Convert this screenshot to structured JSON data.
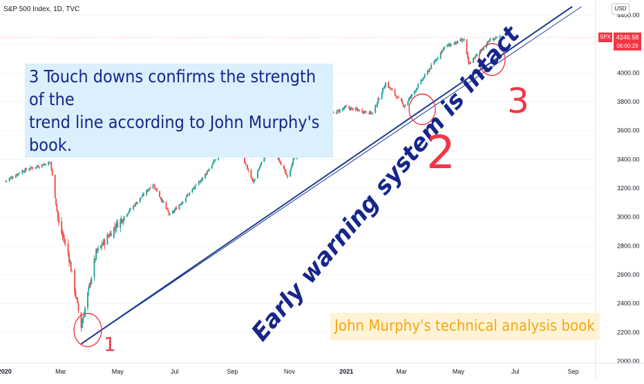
{
  "header": {
    "title": "S&P 500 Index, 1D, TVC"
  },
  "price_badge": {
    "symbol": "SPX",
    "price": "4246.58",
    "countdown": "06:00:29",
    "color": "#f23645"
  },
  "currency": "USD",
  "annotations": {
    "note_line1": "3 Touch downs confirms the strength of the",
    "note_line2": "trend line according to John Murphy's book.",
    "diagonal_text": "Early warning system is intact",
    "book_label": "John Murphy's technical analysis book",
    "touch_labels": [
      "1",
      "2",
      "3"
    ]
  },
  "colors": {
    "up": "#26a69a",
    "down": "#ef5350",
    "trendline": "#1a3a8f",
    "circle": "#f23645",
    "annot_blue_text": "#16268c",
    "annot_orange_text": "#f7a70f"
  },
  "chart_data": {
    "type": "candlestick",
    "title": "S&P 500 Index, 1D, TVC",
    "x_axis_ticks": [
      "2020",
      "Mar",
      "May",
      "Jul",
      "Sep",
      "Nov",
      "2021",
      "Mar",
      "May",
      "Jul",
      "Sep"
    ],
    "y_axis_ticks": [
      "2000.00",
      "2200.00",
      "2400.00",
      "2600.00",
      "2800.00",
      "3000.00",
      "3200.00",
      "3400.00",
      "3600.00",
      "3800.00",
      "4000.00",
      "4200.00",
      "4400.00"
    ],
    "ylim": [
      2000,
      4400
    ],
    "series_close_path": [
      [
        "2020-01-02",
        3250
      ],
      [
        "2020-01-20",
        3320
      ],
      [
        "2020-02-19",
        3380
      ],
      [
        "2020-02-28",
        2950
      ],
      [
        "2020-03-09",
        2750
      ],
      [
        "2020-03-23",
        2240
      ],
      [
        "2020-04-08",
        2750
      ],
      [
        "2020-04-29",
        2940
      ],
      [
        "2020-06-08",
        3230
      ],
      [
        "2020-06-26",
        3010
      ],
      [
        "2020-07-31",
        3270
      ],
      [
        "2020-09-02",
        3580
      ],
      [
        "2020-09-23",
        3240
      ],
      [
        "2020-10-12",
        3530
      ],
      [
        "2020-10-30",
        3270
      ],
      [
        "2020-11-16",
        3620
      ],
      [
        "2020-12-31",
        3760
      ],
      [
        "2021-01-29",
        3720
      ],
      [
        "2021-02-12",
        3930
      ],
      [
        "2021-03-04",
        3770
      ],
      [
        "2021-04-16",
        4180
      ],
      [
        "2021-05-07",
        4230
      ],
      [
        "2021-05-12",
        4060
      ],
      [
        "2021-06-04",
        4230
      ],
      [
        "2021-06-15",
        4246.58
      ]
    ],
    "trendlines": [
      {
        "name": "",
        "from": [
          "2020-03-23",
          2120
        ],
        "to": [
          "2021-09-10",
          4460
        ]
      },
      {
        "name": "",
        "from": [
          "2020-03-23",
          2120
        ],
        "to": [
          "2021-08-31",
          4460
        ]
      }
    ],
    "horizontal_line": 4246.58
  }
}
